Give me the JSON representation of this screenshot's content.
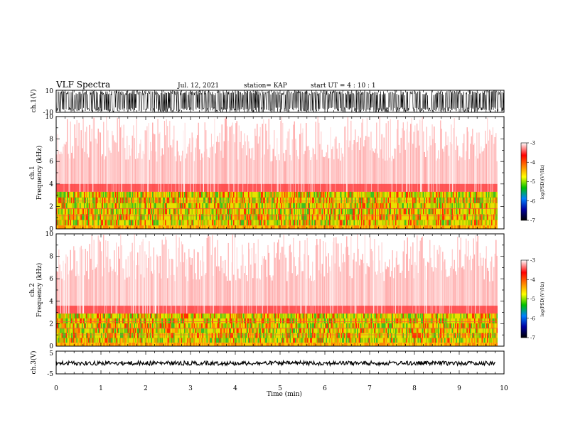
{
  "header": {
    "title": "VLF Spectra",
    "date": "Jul. 12, 2021",
    "station": "station= KAP",
    "start": "start UT = 4 : 10 : 1"
  },
  "chart_data": [
    {
      "type": "line",
      "name": "ch1-waveform",
      "ylabel": "ch.1(V)",
      "ylim": [
        -10,
        10
      ],
      "yticks": [
        "10",
        "-10"
      ],
      "xlim": [
        0,
        10
      ]
    },
    {
      "type": "heatmap",
      "name": "ch1-spectrogram",
      "ylabel_top": "ch.1",
      "ylabel_bottom": "Frequency (kHz)",
      "ylim": [
        0,
        10
      ],
      "yticks": [
        "0",
        "2",
        "4",
        "6",
        "8",
        "10"
      ],
      "xlim": [
        0,
        10
      ],
      "intense_band_khz": [
        0.3,
        3.3
      ],
      "colorbar": {
        "label": "log(PSD)(V²/Hz)",
        "range": [
          -7,
          -3
        ],
        "ticks": [
          "-3",
          "-4",
          "-5",
          "-6",
          "-7"
        ],
        "colors": [
          "#000000",
          "#0000a0",
          "#0080ff",
          "#00c000",
          "#ffff00",
          "#ff8000",
          "#ff0000",
          "#ffffff"
        ]
      }
    },
    {
      "type": "heatmap",
      "name": "ch2-spectrogram",
      "ylabel_top": "ch.2",
      "ylabel_bottom": "Frequency (kHz)",
      "ylim": [
        0,
        10
      ],
      "yticks": [
        "0",
        "2",
        "4",
        "6",
        "8",
        "10"
      ],
      "xlim": [
        0,
        10
      ],
      "intense_band_khz": [
        0.3,
        2.9
      ],
      "colorbar": {
        "label": "log(PSD)(V²/Hz)",
        "range": [
          -7,
          -3
        ],
        "ticks": [
          "-3",
          "-4",
          "-5",
          "-6",
          "-7"
        ],
        "colors": [
          "#000000",
          "#0000a0",
          "#0080ff",
          "#00c000",
          "#ffff00",
          "#ff8000",
          "#ff0000",
          "#ffffff"
        ]
      }
    },
    {
      "type": "line",
      "name": "ch3-waveform",
      "ylabel": "ch.3(V)",
      "ylim": [
        -5,
        5
      ],
      "yticks": [
        "5",
        "-5"
      ],
      "xlim": [
        0,
        10
      ],
      "level": -0.3,
      "xlabel": "Time (min)",
      "xticks": [
        "0",
        "1",
        "2",
        "3",
        "4",
        "5",
        "6",
        "7",
        "8",
        "9",
        "10"
      ]
    }
  ]
}
